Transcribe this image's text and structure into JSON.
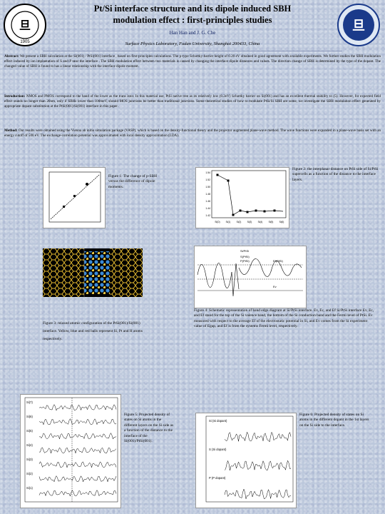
{
  "header": {
    "title_line1": "Pt/Si interface structure and its dipole induced SBH",
    "title_line2": "modulation effect : first-principles studies",
    "authors": "Han Han and J. G. Che",
    "affiliation": "Surface Physics Laboratory, Fudan University, Shanghai 200433, China",
    "logo_left_ring": "FUDAN UNIVERSITY",
    "logo_left_char": "旦",
    "logo_left_year": "1905",
    "logo_right_char": "旦"
  },
  "abstract": {
    "label": "Abstract:",
    "text": " We present a SBH calculation at the Si(001) / PtSi(001) interface , based on first-principles calculations. The p-type Schottky-barrier height of 0.20 eV obtained in good agreement with available experiments. We further studies the SBH modulation effect induced by ion implantation of S and P near the interface . The SBH modulation effect between two materials is caused by changing the interface dipole distances and values. The direction change of SBH is determined by the type of the dopant. The changed value of SBH is found to has a linear relationship with the interface dipole moment."
  },
  "intro": {
    "label": "Introduction:",
    "text": " NMOS and PMOS correspond to the band of the lower as the trans istor. In this material use, PtSi native tree as its relatively low (0.2eV) Schottky barrier on Si(001) and has an excellent thermal stability to (5). However, for expected field effect stands no longer than 20nm, only if SBHs lower than 100meV, should MOS junctions be better than traditional junctions. Some theoretical studies of how to modulate PtSi/Si SBH are some, we investigate the SBH modulation effect generated by appropriate dopant substitution at the PtSi(001)/Si(001) interface in this paper."
  },
  "method": {
    "label": "Method:",
    "text": " Our results were obtained using the Vienna ab initio simulation package (VASP), which is based on the density-functional theory and the projector augmented plane-wave method. The wave functions were expanded in a plane-wave basis set with an energy cutoff of 500 eV. The exchange-correlation potential was approximated with local density approximation (LDA)."
  },
  "captions": {
    "fig1": "Figure 1: The change of p-SBH versus the difference of dipole moments.",
    "fig2": "Figure 2: the interplanar distance on PtSi side of Si/PtSi supercells as a function of the distance to the interface layers.",
    "fig3": "Figure 3: relaxed atomic configuration of the PtSi(001)/Si(001) interface. Yellow, blue and red balls represent Si, Pt and H atoms respectively.",
    "fig4": "Figure 4: Schematic representation of band edge diagram at Si/PtSi interface. Ev, Ec, and Ef Si/PtSi interface Ev, Ec, and Ef stand for the top of the Si valence band, the bottom of the Si conduction band and the Fermi level of PtSi. Ev measured with respect to the average Ef of the electrostatic potential in Si, and Ev comes from the Si experiment value of Egap, and Ef is from the systems Fermi level, respectively.",
    "fig5": "Figure 5: Projected density of states on Si atoms in the different layers on the Si side as a function of the distance to the interface of the Si(001)/PtSi(001).",
    "fig6": "Figure 6: Projected density of states on Si atoms in the different dopant in the 1st layers on the Si side to the interface."
  },
  "fig2_axis": {
    "y_ticks": [
      "1.54",
      "1.52",
      "1.50",
      "1.48",
      "1.46",
      "1.44",
      "1.42"
    ],
    "x_ticks": [
      "Si(D)",
      "Si(1)",
      "Si(2)",
      "Si(3)",
      "Si(4)",
      "Si(5)",
      "Si(6)"
    ]
  },
  "fig4_labels": {
    "l1": "Si/PtSi",
    "l2": "S(PtSi)",
    "l3": "P(PtSi)",
    "l4": "Ef(PtSi)",
    "l5": "Ev"
  },
  "fig5_labels": [
    "Si(7)",
    "Si(6)",
    "Si(5)",
    "Si(4)",
    "Si(3)",
    "Si(2)",
    "Si(1)"
  ],
  "fig6_labels": [
    "Si (Si dopant)",
    "S (Si dopant)",
    "P (P dopant)"
  ],
  "colors": {
    "poster_bg": "#bcc8dc",
    "title": "#000000",
    "link_blue": "#102060"
  }
}
